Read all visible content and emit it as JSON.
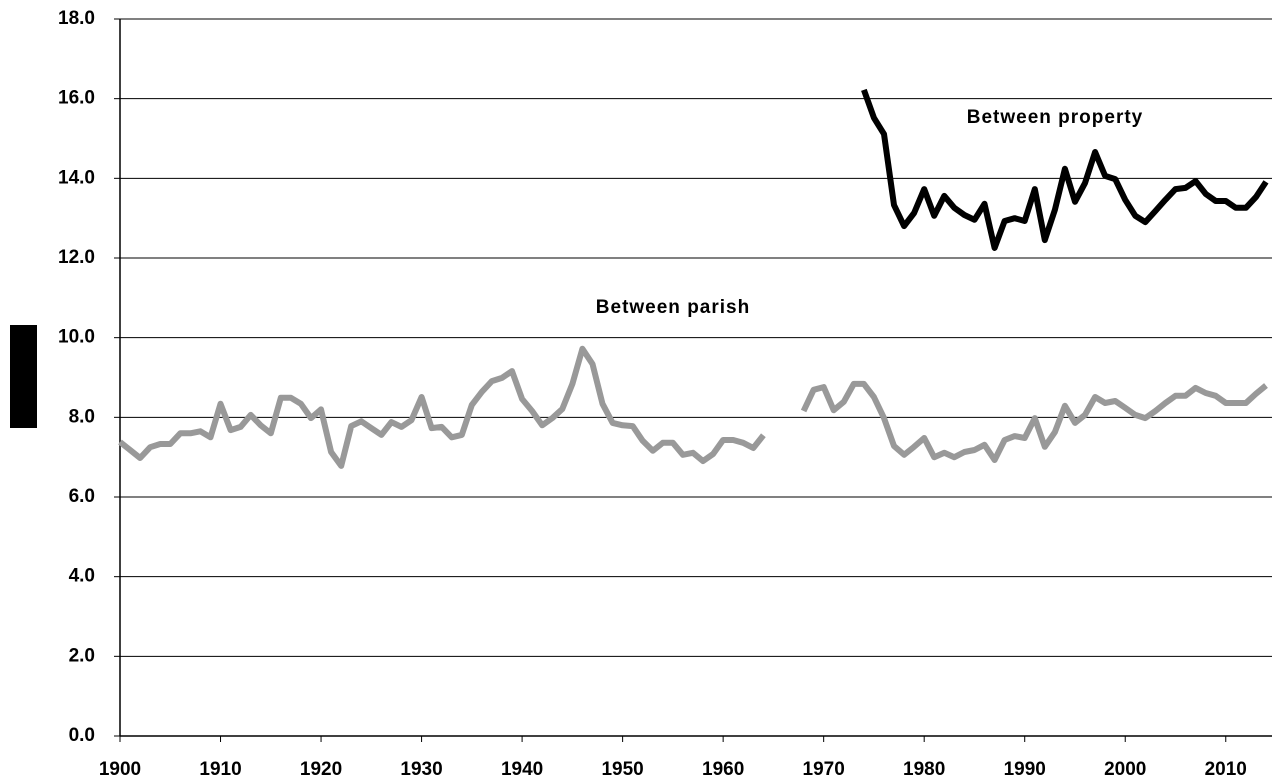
{
  "chart_data": {
    "type": "line",
    "x": [
      1900,
      1901,
      1902,
      1903,
      1904,
      1905,
      1906,
      1907,
      1908,
      1909,
      1910,
      1911,
      1912,
      1913,
      1914,
      1915,
      1916,
      1917,
      1918,
      1919,
      1920,
      1921,
      1922,
      1923,
      1924,
      1925,
      1926,
      1927,
      1928,
      1929,
      1930,
      1931,
      1932,
      1933,
      1934,
      1935,
      1936,
      1937,
      1938,
      1939,
      1940,
      1941,
      1942,
      1943,
      1944,
      1945,
      1946,
      1947,
      1948,
      1949,
      1950,
      1951,
      1952,
      1953,
      1954,
      1955,
      1956,
      1957,
      1958,
      1959,
      1960,
      1961,
      1962,
      1963,
      1964,
      1965,
      1966,
      1967,
      1968,
      1969,
      1970,
      1971,
      1972,
      1973,
      1974,
      1975,
      1976,
      1977,
      1978,
      1979,
      1980,
      1981,
      1982,
      1983,
      1984,
      1985,
      1986,
      1987,
      1988,
      1989,
      1990,
      1991,
      1992,
      1993,
      1994,
      1995,
      1996,
      1997,
      1998,
      1999,
      2000,
      2001,
      2002,
      2003,
      2004,
      2005,
      2006,
      2007,
      2008,
      2009,
      2010,
      2011,
      2012,
      2013,
      2014
    ],
    "series": [
      {
        "name": "Between parish",
        "color": "#999999",
        "values": [
          7.38,
          7.18,
          6.98,
          7.25,
          7.33,
          7.33,
          7.6,
          7.6,
          7.65,
          7.5,
          8.34,
          7.68,
          7.76,
          8.06,
          7.8,
          7.6,
          8.49,
          8.49,
          8.34,
          7.98,
          8.2,
          7.13,
          6.78,
          7.78,
          7.9,
          7.73,
          7.56,
          7.88,
          7.76,
          7.93,
          8.51,
          7.73,
          7.76,
          7.5,
          7.56,
          8.31,
          8.64,
          8.91,
          8.99,
          9.16,
          8.46,
          8.16,
          7.8,
          7.98,
          8.21,
          8.84,
          9.72,
          9.34,
          8.34,
          7.86,
          7.8,
          7.78,
          7.41,
          7.16,
          7.36,
          7.36,
          7.06,
          7.11,
          6.9,
          7.08,
          7.43,
          7.43,
          7.36,
          7.23,
          7.55,
          null,
          null,
          null,
          8.16,
          8.69,
          8.76,
          8.18,
          8.39,
          8.84,
          8.84,
          8.51,
          7.98,
          7.28,
          7.06,
          7.26,
          7.48,
          7.0,
          7.11,
          7.0,
          7.13,
          7.18,
          7.31,
          6.93,
          7.43,
          7.53,
          7.48,
          7.98,
          7.26,
          7.63,
          8.29,
          7.86,
          8.06,
          8.51,
          8.36,
          8.41,
          8.24,
          8.06,
          7.98,
          8.16,
          8.36,
          8.54,
          8.54,
          8.74,
          8.61,
          8.54,
          8.36,
          8.36,
          8.36,
          8.59,
          8.8
        ]
      },
      {
        "name": "Between property",
        "color": "#000000",
        "values": [
          null,
          null,
          null,
          null,
          null,
          null,
          null,
          null,
          null,
          null,
          null,
          null,
          null,
          null,
          null,
          null,
          null,
          null,
          null,
          null,
          null,
          null,
          null,
          null,
          null,
          null,
          null,
          null,
          null,
          null,
          null,
          null,
          null,
          null,
          null,
          null,
          null,
          null,
          null,
          null,
          null,
          null,
          null,
          null,
          null,
          null,
          null,
          null,
          null,
          null,
          null,
          null,
          null,
          null,
          null,
          null,
          null,
          null,
          null,
          null,
          null,
          null,
          null,
          null,
          null,
          null,
          null,
          null,
          null,
          null,
          null,
          null,
          null,
          null,
          16.22,
          15.52,
          15.11,
          13.33,
          12.8,
          13.13,
          13.73,
          13.06,
          13.56,
          13.26,
          13.08,
          12.96,
          13.36,
          12.25,
          12.93,
          13.0,
          12.93,
          13.73,
          12.45,
          13.21,
          14.24,
          13.41,
          13.88,
          14.66,
          14.06,
          13.98,
          13.46,
          13.06,
          12.9,
          13.18,
          13.46,
          13.73,
          13.76,
          13.93,
          13.61,
          13.43,
          13.43,
          13.26,
          13.26,
          13.53,
          13.91
        ]
      }
    ],
    "xlim": [
      1900,
      2014.6
    ],
    "xticks": [
      1900,
      1910,
      1920,
      1930,
      1940,
      1950,
      1960,
      1970,
      1980,
      1990,
      2000,
      2010
    ],
    "ylim": [
      0,
      18
    ],
    "yticks": [
      {
        "value": 0,
        "label": "0.0"
      },
      {
        "value": 2,
        "label": "2.0"
      },
      {
        "value": 4,
        "label": "4.0"
      },
      {
        "value": 6,
        "label": "6.0"
      },
      {
        "value": 8,
        "label": "8.0"
      },
      {
        "value": 10,
        "label": "10.0"
      },
      {
        "value": 12,
        "label": "12.0"
      },
      {
        "value": 14,
        "label": "14.0"
      },
      {
        "value": 16,
        "label": "16.0"
      },
      {
        "value": 18,
        "label": "18.0"
      }
    ],
    "grid": true
  }
}
